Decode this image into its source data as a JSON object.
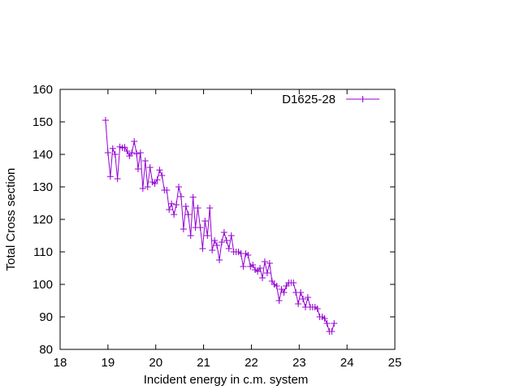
{
  "chart_data": {
    "type": "line",
    "title": "",
    "xlabel": "Incident energy in c.m. system",
    "ylabel": "Total Cross section",
    "xlim": [
      18,
      25
    ],
    "ylim": [
      80,
      160
    ],
    "x_ticks": [
      18,
      19,
      20,
      21,
      22,
      23,
      24,
      25
    ],
    "y_ticks": [
      80,
      90,
      100,
      110,
      120,
      130,
      140,
      150,
      160
    ],
    "grid": false,
    "legend_position": "top-right",
    "marker": "plus",
    "series": [
      {
        "name": "D1625-28",
        "color": "#9400d3",
        "points": [
          [
            18.95,
            150.5
          ],
          [
            19.0,
            140.5
          ],
          [
            19.05,
            133.2
          ],
          [
            19.1,
            141.8
          ],
          [
            19.15,
            140.0
          ],
          [
            19.2,
            132.5
          ],
          [
            19.25,
            142.3
          ],
          [
            19.3,
            142.0
          ],
          [
            19.35,
            142.2
          ],
          [
            19.4,
            141.0
          ],
          [
            19.45,
            139.5
          ],
          [
            19.5,
            140.5
          ],
          [
            19.55,
            144.0
          ],
          [
            19.6,
            140.2
          ],
          [
            19.63,
            135.5
          ],
          [
            19.68,
            140.5
          ],
          [
            19.73,
            129.5
          ],
          [
            19.78,
            138.0
          ],
          [
            19.83,
            130.0
          ],
          [
            19.88,
            136.0
          ],
          [
            19.93,
            131.5
          ],
          [
            19.98,
            131.0
          ],
          [
            20.03,
            132.2
          ],
          [
            20.08,
            135.2
          ],
          [
            20.13,
            133.5
          ],
          [
            20.18,
            129.0
          ],
          [
            20.23,
            129.0
          ],
          [
            20.28,
            123.0
          ],
          [
            20.33,
            124.8
          ],
          [
            20.38,
            121.5
          ],
          [
            20.43,
            124.5
          ],
          [
            20.48,
            130.0
          ],
          [
            20.53,
            127.0
          ],
          [
            20.58,
            117.0
          ],
          [
            20.63,
            124.0
          ],
          [
            20.68,
            121.5
          ],
          [
            20.73,
            115.0
          ],
          [
            20.78,
            126.8
          ],
          [
            20.83,
            117.5
          ],
          [
            20.88,
            123.5
          ],
          [
            20.93,
            117.5
          ],
          [
            20.98,
            111.0
          ],
          [
            21.03,
            119.5
          ],
          [
            21.08,
            115.0
          ],
          [
            21.13,
            123.5
          ],
          [
            21.18,
            110.5
          ],
          [
            21.23,
            113.5
          ],
          [
            21.28,
            112.0
          ],
          [
            21.33,
            107.5
          ],
          [
            21.38,
            113.0
          ],
          [
            21.43,
            116.0
          ],
          [
            21.48,
            113.5
          ],
          [
            21.53,
            111.0
          ],
          [
            21.58,
            115.0
          ],
          [
            21.63,
            110.0
          ],
          [
            21.68,
            110.0
          ],
          [
            21.73,
            110.0
          ],
          [
            21.78,
            109.5
          ],
          [
            21.83,
            105.5
          ],
          [
            21.88,
            109.5
          ],
          [
            21.93,
            109.0
          ],
          [
            21.98,
            105.5
          ],
          [
            22.03,
            106.0
          ],
          [
            22.08,
            104.5
          ],
          [
            22.13,
            104.0
          ],
          [
            22.18,
            105.0
          ],
          [
            22.23,
            102.0
          ],
          [
            22.28,
            107.0
          ],
          [
            22.33,
            103.5
          ],
          [
            22.38,
            106.5
          ],
          [
            22.43,
            101.0
          ],
          [
            22.48,
            100.0
          ],
          [
            22.53,
            99.5
          ],
          [
            22.58,
            95.0
          ],
          [
            22.63,
            98.5
          ],
          [
            22.68,
            97.5
          ],
          [
            22.73,
            99.5
          ],
          [
            22.78,
            100.5
          ],
          [
            22.83,
            100.5
          ],
          [
            22.88,
            100.5
          ],
          [
            22.93,
            97.5
          ],
          [
            22.98,
            94.0
          ],
          [
            23.03,
            97.5
          ],
          [
            23.08,
            95.5
          ],
          [
            23.13,
            93.0
          ],
          [
            23.18,
            96.0
          ],
          [
            23.23,
            93.0
          ],
          [
            23.28,
            93.0
          ],
          [
            23.33,
            93.0
          ],
          [
            23.38,
            92.5
          ],
          [
            23.43,
            90.0
          ],
          [
            23.48,
            90.0
          ],
          [
            23.53,
            89.5
          ],
          [
            23.58,
            88.0
          ],
          [
            23.63,
            85.5
          ],
          [
            23.68,
            85.5
          ],
          [
            23.73,
            88.0
          ]
        ]
      }
    ]
  }
}
